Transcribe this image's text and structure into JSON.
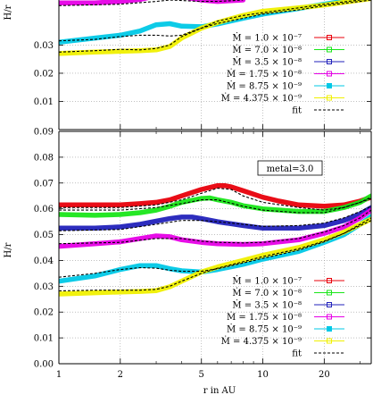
{
  "chart_data": [
    {
      "type": "line",
      "panel": "top-cropped",
      "ylabel": "H/r",
      "ylim_visible": [
        0.0,
        0.046
      ],
      "yticks": [
        "0.03",
        "0.02",
        "0.01"
      ],
      "xscale": "log",
      "grid": true,
      "legend_placement": "bottom-right",
      "legend_entries": [
        {
          "label": "Ṁ = 1.0 × 10⁻⁷",
          "color": "#e8000b"
        },
        {
          "label": "Ṁ = 7.0 × 10⁻⁸",
          "color": "#19e619"
        },
        {
          "label": "Ṁ = 3.5 × 10⁻⁸",
          "color": "#2222bb"
        },
        {
          "label": "Ṁ = 1.75 × 10⁻⁸",
          "color": "#e600e6"
        },
        {
          "label": "Ṁ = 8.75 × 10⁻⁹",
          "color": "#00c8e6"
        },
        {
          "label": "Ṁ = 4.375 × 10⁻⁹",
          "color": "#f0f000"
        },
        {
          "label": "fit",
          "color": "#000000"
        }
      ],
      "series": [
        {
          "name": "Ṁ = 1.75 × 10⁻⁸",
          "color": "#e600e6",
          "x": [
            1.0,
            1.5,
            2.0,
            2.5,
            3.0,
            3.5,
            4.0,
            5.0,
            6.0,
            8.0
          ],
          "y": [
            0.045,
            0.045,
            0.0455,
            0.0462,
            0.0475,
            0.0478,
            0.0472,
            0.046,
            0.0455,
            0.046
          ]
        },
        {
          "name": "Ṁ = 8.75 × 10⁻⁹",
          "color": "#00c8e6",
          "x": [
            1.0,
            1.5,
            2.0,
            2.5,
            3.0,
            3.5,
            4.0,
            5.0,
            6.0,
            8.0,
            10.0,
            15.0,
            20.0,
            30.0,
            34.0
          ],
          "y": [
            0.031,
            0.0325,
            0.0335,
            0.035,
            0.0372,
            0.0376,
            0.0367,
            0.0365,
            0.0375,
            0.0395,
            0.041,
            0.043,
            0.0445,
            0.0465,
            0.047
          ]
        },
        {
          "name": "Ṁ = 4.375 × 10⁻⁹",
          "color": "#f0f000",
          "x": [
            1.0,
            1.5,
            2.0,
            2.5,
            3.0,
            3.5,
            4.0,
            5.0,
            6.0,
            8.0,
            10.0,
            15.0,
            20.0,
            30.0,
            34.0
          ],
          "y": [
            0.027,
            0.0275,
            0.0278,
            0.028,
            0.0283,
            0.0295,
            0.0325,
            0.036,
            0.038,
            0.0405,
            0.042,
            0.0432,
            0.0442,
            0.046,
            0.0465
          ]
        },
        {
          "name": "fit 1",
          "color": "#000000",
          "dashed": true,
          "x": [
            1.0,
            2.0,
            3.0,
            3.5,
            4.0,
            5.0,
            6.0,
            8.0
          ],
          "y": [
            0.044,
            0.0445,
            0.0455,
            0.046,
            0.0458,
            0.0455,
            0.0455,
            0.046
          ]
        },
        {
          "name": "fit 2",
          "color": "#000000",
          "dashed": true,
          "x": [
            1.0,
            1.5,
            2.0,
            2.5,
            3.0,
            3.5,
            4.0,
            5.0,
            6.0,
            8.0,
            10.0,
            15.0,
            20.0,
            30.0,
            34.0
          ],
          "y": [
            0.0315,
            0.032,
            0.033,
            0.0335,
            0.0335,
            0.0332,
            0.0335,
            0.036,
            0.0385,
            0.0405,
            0.0415,
            0.0432,
            0.0445,
            0.046,
            0.0465
          ]
        },
        {
          "name": "fit 3",
          "color": "#000000",
          "dashed": true,
          "x": [
            1.0,
            1.5,
            2.0,
            2.5,
            3.0,
            3.5,
            4.0,
            5.0,
            6.0,
            8.0,
            10.0,
            15.0,
            20.0,
            30.0,
            34.0
          ],
          "y": [
            0.0275,
            0.028,
            0.0285,
            0.0283,
            0.0288,
            0.03,
            0.033,
            0.036,
            0.0377,
            0.0395,
            0.041,
            0.0425,
            0.044,
            0.0455,
            0.046
          ]
        }
      ]
    },
    {
      "type": "line",
      "panel": "bottom",
      "xlabel": "r in AU",
      "ylabel": "H/r",
      "ylim": [
        0.0,
        0.09
      ],
      "xlim": [
        1.0,
        34.0
      ],
      "xscale": "log",
      "xticks": [
        "1",
        "2",
        "5",
        "10",
        "20"
      ],
      "yticks": [
        "0.00",
        "0.01",
        "0.02",
        "0.03",
        "0.04",
        "0.05",
        "0.06",
        "0.07",
        "0.08",
        "0.09"
      ],
      "grid": true,
      "legend_placement": "bottom-right",
      "annotation": "metal=3.0",
      "legend_entries": [
        {
          "label": "Ṁ = 1.0 × 10⁻⁷",
          "color": "#e8000b"
        },
        {
          "label": "Ṁ = 7.0 × 10⁻⁸",
          "color": "#19e619"
        },
        {
          "label": "Ṁ = 3.5 × 10⁻⁸",
          "color": "#2222bb"
        },
        {
          "label": "Ṁ = 1.75 × 10⁻⁸",
          "color": "#e600e6"
        },
        {
          "label": "Ṁ = 8.75 × 10⁻⁹",
          "color": "#00c8e6"
        },
        {
          "label": "Ṁ = 4.375 × 10⁻⁹",
          "color": "#f0f000"
        },
        {
          "label": "fit",
          "color": "#000000"
        }
      ],
      "series": [
        {
          "name": "Ṁ = 1.0 × 10⁻⁷",
          "color": "#e8000b",
          "x": [
            1.0,
            1.5,
            2.0,
            2.5,
            3.0,
            3.5,
            4.0,
            5.0,
            6.0,
            6.5,
            7.0,
            8.0,
            10.0,
            12.0,
            15.0,
            20.0,
            25.0,
            30.0,
            34.0
          ],
          "y": [
            0.0615,
            0.0615,
            0.0615,
            0.062,
            0.0625,
            0.0635,
            0.065,
            0.0675,
            0.069,
            0.069,
            0.0685,
            0.067,
            0.0645,
            0.063,
            0.0615,
            0.061,
            0.0615,
            0.063,
            0.0645
          ]
        },
        {
          "name": "Ṁ = 7.0 × 10⁻⁸",
          "color": "#19e619",
          "x": [
            1.0,
            1.5,
            2.0,
            2.5,
            3.0,
            3.5,
            4.0,
            5.0,
            5.5,
            6.0,
            7.0,
            8.0,
            10.0,
            15.0,
            20.0,
            25.0,
            30.0,
            34.0
          ],
          "y": [
            0.0578,
            0.0575,
            0.0578,
            0.0585,
            0.0595,
            0.061,
            0.0625,
            0.064,
            0.0642,
            0.0635,
            0.0625,
            0.0612,
            0.06,
            0.059,
            0.059,
            0.0605,
            0.0625,
            0.065
          ]
        },
        {
          "name": "Ṁ = 3.5 × 10⁻⁸",
          "color": "#2222bb",
          "x": [
            1.0,
            1.5,
            2.0,
            2.5,
            3.0,
            3.5,
            4.0,
            4.5,
            5.0,
            6.0,
            8.0,
            10.0,
            15.0,
            20.0,
            25.0,
            30.0,
            34.0
          ],
          "y": [
            0.0525,
            0.0525,
            0.053,
            0.054,
            0.0552,
            0.0562,
            0.0568,
            0.0568,
            0.0562,
            0.055,
            0.0535,
            0.0525,
            0.0525,
            0.0535,
            0.0555,
            0.058,
            0.0605
          ]
        },
        {
          "name": "Ṁ = 1.75 × 10⁻⁸",
          "color": "#e600e6",
          "x": [
            1.0,
            1.5,
            2.0,
            2.5,
            3.0,
            3.5,
            4.0,
            5.0,
            6.0,
            8.0,
            10.0,
            15.0,
            20.0,
            25.0,
            30.0,
            34.0
          ],
          "y": [
            0.0455,
            0.0465,
            0.0472,
            0.0485,
            0.0495,
            0.0492,
            0.048,
            0.047,
            0.0465,
            0.0462,
            0.0465,
            0.048,
            0.0505,
            0.053,
            0.0565,
            0.0595
          ]
        },
        {
          "name": "Ṁ = 8.75 × 10⁻⁹",
          "color": "#00c8e6",
          "x": [
            1.0,
            1.5,
            2.0,
            2.5,
            3.0,
            3.5,
            4.0,
            5.0,
            6.0,
            8.0,
            10.0,
            15.0,
            20.0,
            25.0,
            30.0,
            34.0
          ],
          "y": [
            0.032,
            0.034,
            0.0365,
            0.038,
            0.038,
            0.0368,
            0.036,
            0.0355,
            0.0365,
            0.0385,
            0.0405,
            0.0435,
            0.047,
            0.05,
            0.054,
            0.057
          ]
        },
        {
          "name": "Ṁ = 4.375 × 10⁻⁹",
          "color": "#f0f000",
          "x": [
            1.0,
            1.5,
            2.0,
            2.5,
            3.0,
            3.5,
            4.0,
            5.0,
            6.0,
            8.0,
            10.0,
            15.0,
            20.0,
            25.0,
            30.0,
            34.0
          ],
          "y": [
            0.027,
            0.0275,
            0.0278,
            0.028,
            0.0283,
            0.0298,
            0.032,
            0.0355,
            0.0375,
            0.04,
            0.042,
            0.045,
            0.048,
            0.051,
            0.054,
            0.056
          ]
        },
        {
          "name": "fit 1",
          "color": "#000000",
          "dashed": true,
          "x": [
            1.0,
            2.0,
            3.0,
            4.0,
            5.0,
            6.0,
            7.0,
            8.0,
            10.0,
            15.0,
            20.0,
            25.0,
            30.0,
            34.0
          ],
          "y": [
            0.0605,
            0.0605,
            0.0615,
            0.0635,
            0.066,
            0.068,
            0.0675,
            0.065,
            0.0625,
            0.0605,
            0.0595,
            0.0605,
            0.0625,
            0.064
          ]
        },
        {
          "name": "fit 2",
          "color": "#000000",
          "dashed": true,
          "x": [
            1.0,
            2.0,
            3.0,
            4.0,
            5.0,
            6.0,
            8.0,
            10.0,
            15.0,
            20.0,
            25.0,
            30.0,
            34.0
          ],
          "y": [
            0.0595,
            0.0595,
            0.0605,
            0.062,
            0.0635,
            0.0635,
            0.061,
            0.0595,
            0.0585,
            0.0585,
            0.0605,
            0.0625,
            0.0645
          ]
        },
        {
          "name": "fit 3",
          "color": "#000000",
          "dashed": true,
          "x": [
            1.0,
            2.0,
            3.0,
            4.0,
            5.0,
            6.0,
            8.0,
            10.0,
            15.0,
            20.0,
            25.0,
            30.0,
            34.0
          ],
          "y": [
            0.0515,
            0.052,
            0.054,
            0.0555,
            0.0555,
            0.055,
            0.054,
            0.0532,
            0.0535,
            0.0545,
            0.0565,
            0.059,
            0.061
          ]
        },
        {
          "name": "fit 4",
          "color": "#000000",
          "dashed": true,
          "x": [
            1.0,
            2.0,
            3.0,
            4.0,
            5.0,
            6.0,
            8.0,
            10.0,
            15.0,
            20.0,
            25.0,
            30.0,
            34.0
          ],
          "y": [
            0.0465,
            0.047,
            0.0485,
            0.0485,
            0.0475,
            0.047,
            0.0468,
            0.047,
            0.0485,
            0.051,
            0.0535,
            0.0565,
            0.0595
          ]
        },
        {
          "name": "fit 5",
          "color": "#000000",
          "dashed": true,
          "x": [
            1.0,
            1.5,
            2.0,
            2.5,
            3.0,
            3.5,
            4.0,
            5.0,
            6.0,
            8.0,
            10.0,
            15.0,
            20.0,
            25.0,
            30.0,
            34.0
          ],
          "y": [
            0.0335,
            0.035,
            0.0365,
            0.0372,
            0.037,
            0.0362,
            0.0358,
            0.0358,
            0.0368,
            0.039,
            0.0408,
            0.044,
            0.0472,
            0.0505,
            0.054,
            0.0565
          ]
        },
        {
          "name": "fit 6",
          "color": "#000000",
          "dashed": true,
          "x": [
            1.0,
            1.5,
            2.0,
            2.5,
            3.0,
            3.5,
            4.0,
            5.0,
            6.0,
            8.0,
            10.0,
            15.0,
            20.0,
            25.0,
            30.0,
            34.0
          ],
          "y": [
            0.0282,
            0.0285,
            0.0285,
            0.0285,
            0.0288,
            0.03,
            0.032,
            0.035,
            0.037,
            0.0395,
            0.0415,
            0.0445,
            0.0475,
            0.0505,
            0.0535,
            0.0555
          ]
        }
      ]
    }
  ],
  "legend_symbols": {
    "hat": "˙"
  }
}
